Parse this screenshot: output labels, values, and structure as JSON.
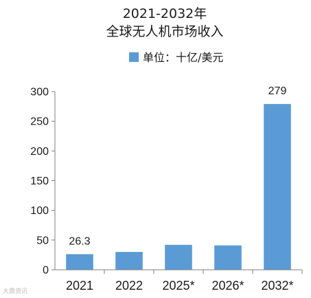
{
  "chart_data": {
    "type": "bar",
    "title": "2021-2032年",
    "subtitle": "全球无人机市场收入",
    "legend": {
      "label": "单位：十亿/美元",
      "color": "#5b9bd5",
      "placement": "top"
    },
    "categories": [
      "2021",
      "2022",
      "2025*",
      "2026*",
      "2032*"
    ],
    "values": [
      26.3,
      30.0,
      42.0,
      41.0,
      279
    ],
    "data_labels": [
      "26.3",
      "",
      "",
      "",
      "279"
    ],
    "ylim": [
      0,
      300
    ],
    "yticks": [
      0,
      50,
      100,
      150,
      200,
      250,
      300
    ],
    "xlabel": "",
    "ylabel": "",
    "grid": false,
    "bar_color": "#5b9bd5"
  },
  "watermark": {
    "text": "大鼎资讯"
  }
}
